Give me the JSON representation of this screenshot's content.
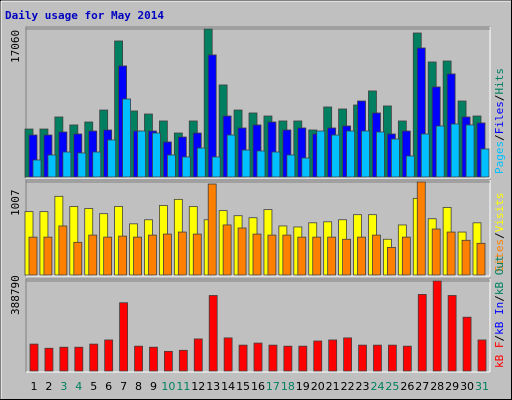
{
  "chart_data": [
    {
      "type": "bar",
      "title": "Daily usage for May 2014",
      "legend_separator": "/",
      "ylim": [
        0,
        17060
      ],
      "yticks": [
        17060
      ],
      "grid": true,
      "series": [
        {
          "name": "Hits",
          "color": "#008060",
          "values": [
            5530,
            5530,
            6920,
            6000,
            6340,
            7720,
            15680,
            7610,
            7260,
            6460,
            5070,
            6460,
            17060,
            10610,
            7720,
            7380,
            7030,
            6460,
            6460,
            5420,
            8070,
            7840,
            8300,
            9920,
            8190,
            6460,
            16600,
            13260,
            13370,
            8760,
            7030
          ]
        },
        {
          "name": "Files",
          "color": "#0000ff",
          "values": [
            4840,
            4840,
            5190,
            4960,
            5300,
            5420,
            12800,
            5300,
            5300,
            4040,
            4610,
            5070,
            14070,
            7030,
            5650,
            6000,
            6340,
            5420,
            5650,
            4960,
            5650,
            5880,
            8760,
            7380,
            4960,
            5300,
            14870,
            10380,
            11880,
            6920,
            6230
          ]
        },
        {
          "name": "Pages",
          "color": "#00c0ff",
          "values": [
            1960,
            2540,
            2880,
            2770,
            2880,
            4270,
            8990,
            5300,
            5070,
            2540,
            2310,
            3340,
            2310,
            4840,
            3110,
            3000,
            2880,
            2540,
            2190,
            5300,
            4840,
            5300,
            5300,
            5190,
            4380,
            2420,
            4960,
            5880,
            6110,
            6000,
            3230
          ]
        }
      ]
    },
    {
      "type": "bar",
      "legend_separator": "/",
      "ylim": [
        0,
        1007
      ],
      "yticks": [
        1007
      ],
      "grid": true,
      "series": [
        {
          "name": "Visits",
          "color": "#ffff00",
          "values": [
            686,
            686,
            852,
            742,
            720,
            664,
            742,
            554,
            598,
            753,
            819,
            742,
            598,
            697,
            642,
            620,
            708,
            531,
            520,
            565,
            576,
            598,
            653,
            653,
            387,
            542,
            830,
            609,
            731,
            465,
            565
          ]
        },
        {
          "name": "Sites",
          "color": "#ff8000",
          "values": [
            410,
            410,
            531,
            354,
            432,
            410,
            421,
            410,
            432,
            443,
            465,
            443,
            985,
            542,
            509,
            443,
            432,
            432,
            410,
            410,
            410,
            387,
            410,
            432,
            299,
            410,
            1007,
            498,
            465,
            376,
            343
          ]
        }
      ]
    },
    {
      "type": "bar",
      "legend_separator": "/",
      "ylim": [
        0,
        388790
      ],
      "yticks": [
        388790
      ],
      "grid": true,
      "categories": [
        "1",
        "2",
        "3",
        "4",
        "5",
        "6",
        "7",
        "8",
        "9",
        "10",
        "11",
        "12",
        "13",
        "14",
        "15",
        "16",
        "17",
        "18",
        "19",
        "20",
        "21",
        "22",
        "23",
        "24",
        "25",
        "26",
        "27",
        "28",
        "29",
        "30",
        "31"
      ],
      "category_colors": [
        "#000",
        "#000",
        "#008060",
        "#008060",
        "#000",
        "#000",
        "#000",
        "#000",
        "#000",
        "#008060",
        "#008060",
        "#000",
        "#000",
        "#000",
        "#000",
        "#000",
        "#008060",
        "#008060",
        "#000",
        "#000",
        "#000",
        "#000",
        "#000",
        "#008060",
        "#008060",
        "#000",
        "#000",
        "#000",
        "#000",
        "#000",
        "#008060"
      ],
      "legend": [
        {
          "name": "kB F",
          "color": "#ff0000"
        },
        {
          "name": "kB In",
          "color": "#0000ff"
        },
        {
          "name": "kB Out",
          "color": "#008060"
        }
      ],
      "series": [
        {
          "name": "kB F",
          "color": "#ff0000",
          "values": [
            116200,
            98300,
            102800,
            102800,
            116200,
            134100,
            294960,
            107260,
            102800,
            84900,
            89380,
            138540,
            326240,
            143010,
            111730,
            120670,
            111730,
            107260,
            107260,
            129600,
            134070,
            143010,
            111730,
            111730,
            111730,
            107260,
            330710,
            388790,
            326240,
            232390,
            134070
          ]
        }
      ]
    }
  ]
}
